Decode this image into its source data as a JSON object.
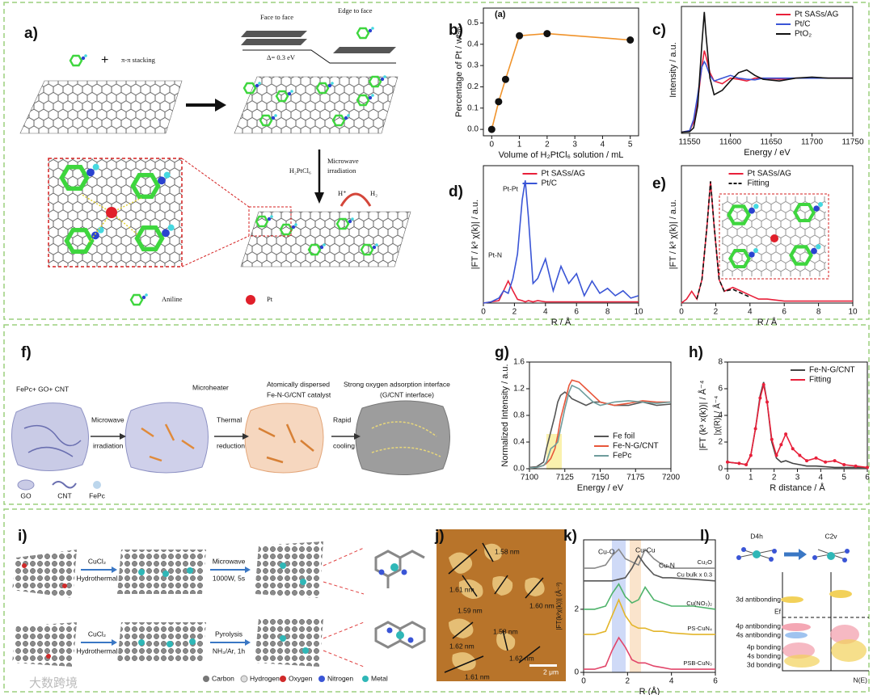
{
  "panels": {
    "labels": [
      "a)",
      "b)",
      "c)",
      "d)",
      "e)",
      "f)",
      "g)",
      "h)",
      "i)",
      "j)",
      "k)",
      "l)"
    ]
  },
  "panel_a": {
    "stacking": "π-π stacking",
    "face_to_face": "Face to face",
    "edge_to_face": "Edge to face",
    "delta": "Δ= 0.3 eV",
    "reagent": "H₂PtCl₆",
    "step1": "Microwave",
    "step2": "irradiation",
    "proton": "H⁺",
    "hydrogen": "H₂",
    "legend_aniline": "Aniline",
    "legend_pt": "Pt"
  },
  "panel_f": {
    "start": "FePc+ GO+ CNT",
    "microheater": "Microheater",
    "catalyst1": "Atomically dispersed",
    "catalyst2": "Fe-N-G/CNT catalyst",
    "interface1": "Strong oxygen adsorption interface",
    "interface2": "(G/CNT interface)",
    "arrow1": [
      "Microwave",
      "irradiation"
    ],
    "arrow2": [
      "Thermal",
      "reduction"
    ],
    "arrow3": [
      "Rapid",
      "cooling"
    ],
    "legend": [
      "GO",
      "CNT",
      "FePc"
    ]
  },
  "panel_i": {
    "top": [
      "CuCl₂",
      "Hydrothermal",
      "Microwave",
      "1000W, 5s"
    ],
    "bottom": [
      "CuCl₂",
      "Hydrothermal",
      "Pyrolysis",
      "NH₃/Ar, 1h"
    ],
    "legend": [
      "Carbon",
      "Hydrogen",
      "Oxygen",
      "Nitrogen",
      "Metal"
    ]
  },
  "panel_j": {
    "thickness": [
      "1.61 nm",
      "1.58 nm",
      "1.59 nm",
      "1.60 nm",
      "1.58 nm",
      "1.62 nm",
      "1.62 nm",
      "1.61 nm"
    ],
    "scale_bar": "2 μm"
  },
  "panel_l": {
    "left_symmetry": "D4h",
    "right_symmetry": "C2v",
    "levels": [
      "3d antibonding",
      "4p antibonding",
      "4s antibonding",
      "4p bonding",
      "4s bonding",
      "3d bonding"
    ],
    "fermi": "Ef",
    "axis": "N(E)"
  },
  "watermark": "大数跨境",
  "chart_data": [
    {
      "type": "line",
      "xlabel": "Volume of H₂PtCl₆ solution / mL",
      "ylabel": "Percentage of Pt / wt%",
      "annotations": [
        "(a)"
      ],
      "x": [
        0,
        0.25,
        0.5,
        1,
        2,
        5
      ],
      "xlim": [
        -0.3,
        5.3
      ],
      "xticks": [
        0,
        1,
        2,
        3,
        4,
        5
      ],
      "ylim": [
        -0.03,
        0.57
      ],
      "yticks": [
        {
          "value": 0,
          "label": "0.0"
        },
        0.1,
        0.2,
        0.3,
        0.4,
        0.5
      ],
      "markers": true,
      "marker_color": "#111111",
      "series": [
        {
          "color": "#f0932b",
          "values": [
            0,
            0.13,
            0.235,
            0.44,
            0.45,
            0.42
          ]
        }
      ]
    },
    {
      "type": "line",
      "xlabel": "Energy / eV",
      "ylabel": "Intensity / a.u.",
      "legend": "upper right",
      "x": [
        11540,
        11550,
        11555,
        11560,
        11565,
        11568,
        11570,
        11575,
        11580,
        11590,
        11600,
        11610,
        11620,
        11630,
        11640,
        11660,
        11680,
        11700,
        11720,
        11750
      ],
      "xlim": [
        11540,
        11750
      ],
      "xticks": [
        11550,
        11600,
        11650,
        11700,
        11750
      ],
      "ylim": [
        0,
        2.3
      ],
      "series": [
        {
          "name": "Pt SASs/AG",
          "color": "#e8203a",
          "values": [
            0.02,
            0.05,
            0.2,
            0.6,
            1.2,
            1.5,
            1.4,
            1.1,
            0.95,
            0.9,
            1.0,
            0.98,
            0.95,
            1.0,
            1.0,
            0.98,
            1.0,
            1.0,
            1.0,
            1.0
          ]
        },
        {
          "name": "Pt/C",
          "color": "#3a55d6",
          "values": [
            0.02,
            0.05,
            0.25,
            0.7,
            1.2,
            1.3,
            1.25,
            1.05,
            0.95,
            1.0,
            1.05,
            1.0,
            0.98,
            0.97,
            1.0,
            1.0,
            1.0,
            1.0,
            1.0,
            1.0
          ]
        },
        {
          "name": "PtO₂",
          "color": "#111111",
          "values": [
            0.02,
            0.03,
            0.1,
            0.5,
            1.6,
            2.2,
            1.8,
            1.0,
            0.7,
            0.78,
            0.95,
            1.1,
            1.15,
            1.05,
            0.98,
            0.95,
            1.0,
            1.02,
            1.0,
            1.0
          ]
        }
      ]
    },
    {
      "type": "line",
      "xlabel": "R / Å",
      "ylabel": "|FT / k³ χ(k)| / a.u.",
      "legend": "upper center",
      "annotations": [
        "Pt-N",
        "Pt-Pt"
      ],
      "x": [
        0,
        0.5,
        1,
        1.3,
        1.6,
        1.9,
        2.2,
        2.5,
        2.7,
        2.9,
        3.2,
        3.5,
        4,
        4.5,
        5,
        5.5,
        6,
        6.5,
        7,
        7.5,
        8,
        8.5,
        9,
        9.5,
        10
      ],
      "xlim": [
        0,
        10
      ],
      "xticks": [
        0,
        2,
        4,
        6,
        8,
        10
      ],
      "ylim": [
        0,
        5.6
      ],
      "series": [
        {
          "name": "Pt SASs/AG",
          "color": "#e8203a",
          "values": [
            0,
            0.05,
            0.1,
            0.5,
            0.9,
            0.5,
            0.15,
            0.1,
            0.05,
            0.1,
            0.05,
            0.1,
            0.05,
            0.05,
            0.05,
            0.05,
            0.05,
            0.05,
            0.05,
            0.05,
            0.05,
            0.05,
            0.05,
            0.05,
            0.05
          ]
        },
        {
          "name": "Pt/C",
          "color": "#3a55d6",
          "values": [
            0,
            0.05,
            0.2,
            0.5,
            0.4,
            1.0,
            2.0,
            4.2,
            5.0,
            3.5,
            0.8,
            1.0,
            1.8,
            0.5,
            1.5,
            0.8,
            1.2,
            0.3,
            0.9,
            0.4,
            0.6,
            0.3,
            0.5,
            0.2,
            0.3
          ]
        }
      ]
    },
    {
      "type": "line",
      "xlabel": "R / Å",
      "ylabel": "|FT / k³ χ(k)| / a.u.",
      "legend": "upper center",
      "x": [
        0,
        0.3,
        0.6,
        0.9,
        1.2,
        1.5,
        1.7,
        1.9,
        2.2,
        2.5,
        3,
        3.5,
        4,
        4.5,
        5,
        6,
        7,
        8,
        9,
        10
      ],
      "xlim": [
        0,
        10
      ],
      "xticks": [
        0,
        2,
        4,
        6,
        8,
        10
      ],
      "ylim": [
        0,
        3.5
      ],
      "series": [
        {
          "name": "Pt SASs/AG",
          "color": "#e8203a",
          "values": [
            0,
            0.1,
            0.3,
            0.1,
            0.6,
            2.0,
            3.1,
            2.0,
            0.6,
            0.3,
            0.4,
            0.3,
            0.2,
            0.1,
            0.1,
            0.05,
            0.05,
            0.05,
            0.05,
            0.05
          ]
        },
        {
          "name": "Fitting",
          "color": "#111111",
          "dash": true,
          "values": [
            null,
            null,
            null,
            0.1,
            0.6,
            2.0,
            3.1,
            2.0,
            0.6,
            0.3,
            0.35,
            0.25,
            0.15,
            null,
            null,
            null,
            null,
            null,
            null,
            null
          ]
        }
      ]
    },
    {
      "type": "line",
      "xlabel": "Energy / eV",
      "ylabel": "Normalized Intensity / a.u.",
      "legend": "lower right",
      "x": [
        7100,
        7105,
        7110,
        7112,
        7115,
        7118,
        7120,
        7122,
        7125,
        7128,
        7130,
        7135,
        7140,
        7145,
        7150,
        7160,
        7170,
        7180,
        7190,
        7200
      ],
      "xlim": [
        7100,
        7200
      ],
      "xticks": [
        7100,
        7125,
        7150,
        7175,
        7200
      ],
      "ylim": [
        0,
        1.6
      ],
      "yticks": [
        {
          "value": 0,
          "label": "0.0"
        },
        0.4,
        0.8,
        1.2,
        1.6
      ],
      "series": [
        {
          "name": "Fe foil",
          "color": "#555555",
          "values": [
            0.02,
            0.03,
            0.1,
            0.3,
            0.55,
            0.8,
            1.0,
            1.1,
            1.15,
            1.1,
            1.05,
            1.0,
            0.95,
            1.0,
            1.0,
            0.95,
            0.95,
            1.0,
            0.95,
            0.97
          ]
        },
        {
          "name": "Fe-N-G/CNT",
          "color": "#e8563a",
          "values": [
            0.01,
            0.02,
            0.05,
            0.08,
            0.15,
            0.3,
            0.5,
            0.75,
            1.0,
            1.25,
            1.33,
            1.3,
            1.2,
            1.1,
            1.0,
            0.95,
            0.98,
            1.02,
            1.0,
            1.0
          ]
        },
        {
          "name": "FePc",
          "color": "#6e9c9c",
          "values": [
            0.01,
            0.02,
            0.05,
            0.1,
            0.3,
            0.35,
            0.4,
            0.6,
            0.9,
            1.15,
            1.25,
            1.2,
            1.1,
            1.0,
            0.95,
            1.0,
            1.02,
            1.0,
            0.98,
            1.0
          ]
        }
      ]
    },
    {
      "type": "line",
      "xlabel": "R distance / Å",
      "ylabel": "|FT (k³ x(k))| / Å⁻⁴",
      "ylabel_inner": "|χ(R)| / Å⁻⁴",
      "legend": "upper right",
      "x": [
        0,
        0.5,
        0.8,
        1,
        1.2,
        1.4,
        1.55,
        1.7,
        1.9,
        2.1,
        2.3,
        2.5,
        2.8,
        3.1,
        3.4,
        3.8,
        4.2,
        4.6,
        5,
        5.5,
        6
      ],
      "xlim": [
        0,
        6
      ],
      "xticks": [
        0,
        1,
        2,
        3,
        4,
        5,
        6
      ],
      "ylim": [
        0,
        8
      ],
      "yticks": [
        0,
        2,
        4,
        6,
        8
      ],
      "series": [
        {
          "name": "Fe-N-G/CNT",
          "color": "#444444",
          "values": [
            0.5,
            0.4,
            0.3,
            1.0,
            3.0,
            5.5,
            6.5,
            5.0,
            2.0,
            0.8,
            0.5,
            0.6,
            0.4,
            0.3,
            0.2,
            0.2,
            0.15,
            0.1,
            0.1,
            0.1,
            0.1
          ]
        },
        {
          "name": "Fitting",
          "color": "#e8203a",
          "markers": true,
          "values": [
            0.5,
            0.4,
            0.3,
            1.0,
            3.0,
            5.3,
            6.3,
            5.0,
            2.2,
            1.0,
            1.8,
            2.6,
            1.5,
            1.0,
            0.6,
            0.8,
            0.5,
            0.6,
            0.3,
            0.2,
            0.1
          ]
        }
      ]
    },
    {
      "type": "line",
      "xlabel": "R (Å)",
      "ylabel": "|FT(k²χ(k))| (Å⁻³)",
      "legend": "inline",
      "annotations": [
        "Cu-O",
        "Cu-Cu",
        "Cu-N"
      ],
      "x": [
        0,
        0.5,
        1,
        1.3,
        1.6,
        1.9,
        2.2,
        2.5,
        2.8,
        3.2,
        3.6,
        4,
        5,
        6
      ],
      "xlim": [
        0,
        6
      ],
      "xticks": [
        0,
        2,
        4,
        6
      ],
      "ylim": [
        0,
        4.2
      ],
      "yticks": [
        0,
        2
      ],
      "series": [
        {
          "name": "Cu₂O",
          "color": "#888888",
          "values": [
            3.3,
            3.3,
            3.4,
            3.7,
            3.9,
            3.6,
            3.5,
            3.4,
            3.9,
            3.6,
            3.4,
            3.3,
            3.3,
            3.3
          ]
        },
        {
          "name": "Cu bulk x 0.3",
          "color": "#555555",
          "values": [
            2.9,
            2.9,
            2.9,
            2.9,
            2.95,
            3.0,
            3.3,
            3.7,
            3.4,
            3.1,
            3.0,
            3.0,
            2.95,
            2.9
          ]
        },
        {
          "name": "Cu(NO₃)₂",
          "color": "#4fb36b",
          "values": [
            2.0,
            2.0,
            2.1,
            2.5,
            2.8,
            2.4,
            2.2,
            2.3,
            2.7,
            2.3,
            2.2,
            2.1,
            2.1,
            2.0
          ]
        },
        {
          "name": "PS-CuN₄",
          "color": "#e3b52a",
          "values": [
            1.2,
            1.2,
            1.3,
            1.8,
            2.3,
            1.8,
            1.5,
            1.4,
            1.4,
            1.3,
            1.3,
            1.25,
            1.2,
            1.2
          ]
        },
        {
          "name": "PSB-CuN₃",
          "color": "#e2466a",
          "values": [
            0.1,
            0.1,
            0.2,
            0.7,
            1.1,
            0.8,
            0.4,
            0.3,
            0.3,
            0.2,
            0.15,
            0.1,
            0.1,
            0.1
          ]
        }
      ]
    }
  ]
}
